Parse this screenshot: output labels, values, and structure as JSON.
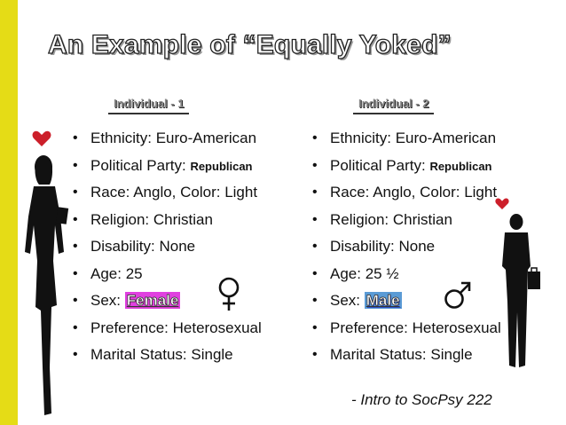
{
  "title": "An Example of “Equally Yoked”",
  "columns": [
    {
      "header": "Individual - 1",
      "items": [
        {
          "label": "Ethnicity: ",
          "value": "Euro-American"
        },
        {
          "label": "Political Party: ",
          "value": "Republican",
          "value_style": "small-bold"
        },
        {
          "label": "Race: ",
          "value": "Anglo, Color: Light"
        },
        {
          "label": "Religion: ",
          "value": "Christian"
        },
        {
          "label": "Disability: ",
          "value": "None"
        },
        {
          "label": "Age: ",
          "value": "25"
        },
        {
          "label": "Sex: ",
          "value": "Female",
          "value_style": "female"
        },
        {
          "label": "Preference: ",
          "value": "Heterosexual"
        },
        {
          "label": "Marital Status: ",
          "value": "Single"
        }
      ]
    },
    {
      "header": "Individual - 2",
      "items": [
        {
          "label": "Ethnicity: ",
          "value": "Euro-American"
        },
        {
          "label": "Political Party: ",
          "value": "Republican",
          "value_style": "small-bold"
        },
        {
          "label": "Race: ",
          "value": "Anglo, Color: Light"
        },
        {
          "label": "Religion: ",
          "value": "Christian"
        },
        {
          "label": "Disability: ",
          "value": "None"
        },
        {
          "label": "Age: ",
          "value": "25 ½"
        },
        {
          "label": "Sex: ",
          "value": "Male",
          "value_style": "male"
        },
        {
          "label": "Preference: ",
          "value": "Heterosexual"
        },
        {
          "label": "Marital Status: ",
          "value": "Single"
        }
      ]
    }
  ],
  "citation": "- Intro to SocPsy 222",
  "icons": [
    "heart-icon",
    "woman-silhouette-icon",
    "female-symbol-icon",
    "male-symbol-icon",
    "man-silhouette-icon"
  ],
  "colors": {
    "accent_bar": "#e5dc16",
    "heart": "#cc1f2a",
    "female": "#e040e0",
    "male": "#5b9bd5"
  }
}
